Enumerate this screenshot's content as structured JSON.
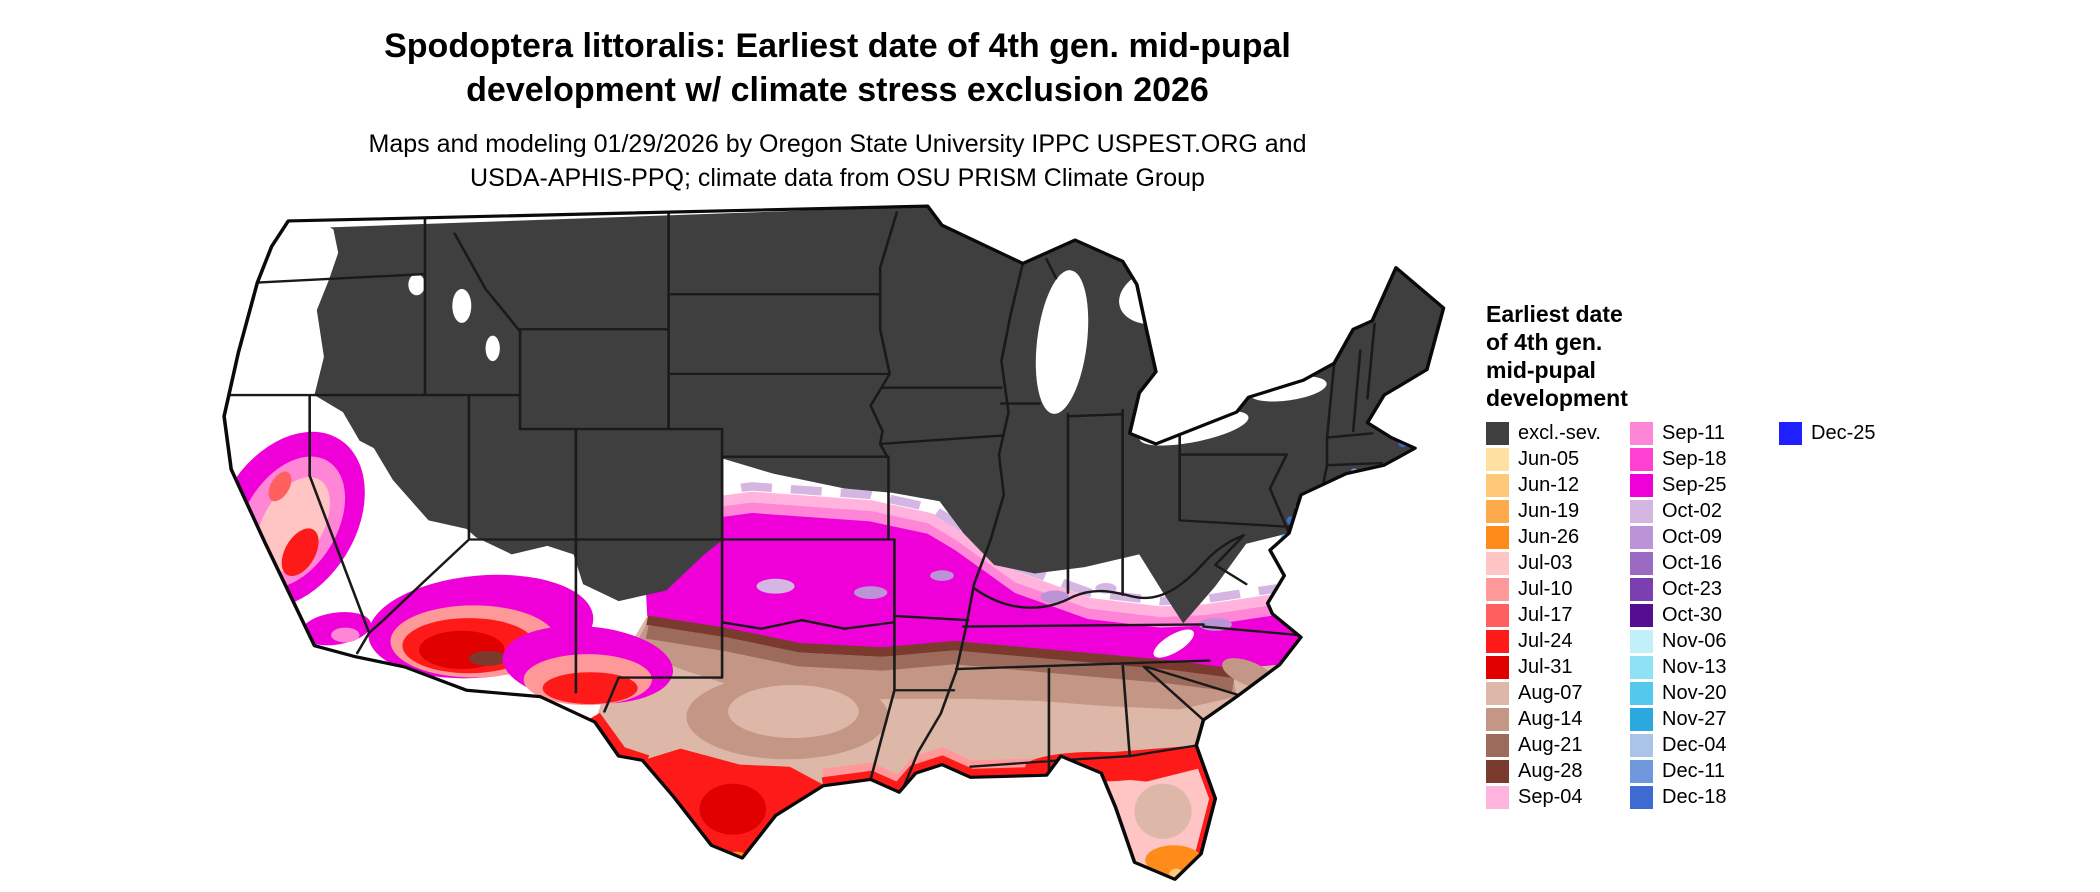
{
  "header": {
    "title_lines": [
      "Spodoptera littoralis: Earliest date of 4th gen. mid-pupal",
      "development w/ climate stress exclusion 2026"
    ],
    "subtitle_lines": [
      "Maps and modeling 01/29/2026 by Oregon State University IPPC USPEST.ORG and",
      "USDA-APHIS-PPQ; climate data from OSU PRISM Climate Group"
    ]
  },
  "legend": {
    "title_lines": [
      "Earliest date",
      "of 4th gen.",
      "mid-pupal",
      "development"
    ],
    "column_sizes": [
      15,
      15,
      1
    ]
  },
  "palette": {
    "white": "#FFFFFF",
    "excl": "#3F3F3F",
    "jun05": "#FFE0A3",
    "jun12": "#FFC878",
    "jun19": "#FFA94D",
    "jun26": "#FF8C1A",
    "jul03": "#FFC4C4",
    "jul10": "#FF9999",
    "jul17": "#FF5F5F",
    "jul24": "#FF1A1A",
    "jul31": "#E00000",
    "aug07": "#DDB8A8",
    "aug14": "#C49686",
    "aug21": "#9C6B5C",
    "aug28": "#7A3B2E",
    "sep04": "#FFB3DD",
    "sep11": "#FF85D6",
    "sep18": "#FF40D0",
    "sep25": "#F000D8",
    "oct02": "#D5B6E3",
    "oct09": "#BB93D6",
    "oct16": "#9B6BC4",
    "oct23": "#7C3FB0",
    "oct30": "#560D91",
    "nov06": "#C2F0FA",
    "nov13": "#8FE1F5",
    "nov20": "#55C9ED",
    "nov27": "#2BA8DE",
    "dec04": "#A9C4E6",
    "dec11": "#6F97DB",
    "dec18": "#3D6BD1",
    "dec25": "#1F1FFF"
  },
  "chart_data": {
    "type": "choropleth_map",
    "region": "Contiguous United States",
    "title": "Spodoptera littoralis: Earliest date of 4th gen. mid-pupal development w/ climate stress exclusion 2026",
    "legend_title": "Earliest date of 4th gen. mid-pupal development",
    "classes": [
      {
        "label": "excl.-sev.",
        "key": "excl"
      },
      {
        "label": "Jun-05",
        "key": "jun05"
      },
      {
        "label": "Jun-12",
        "key": "jun12"
      },
      {
        "label": "Jun-19",
        "key": "jun19"
      },
      {
        "label": "Jun-26",
        "key": "jun26"
      },
      {
        "label": "Jul-03",
        "key": "jul03"
      },
      {
        "label": "Jul-10",
        "key": "jul10"
      },
      {
        "label": "Jul-17",
        "key": "jul17"
      },
      {
        "label": "Jul-24",
        "key": "jul24"
      },
      {
        "label": "Jul-31",
        "key": "jul31"
      },
      {
        "label": "Aug-07",
        "key": "aug07"
      },
      {
        "label": "Aug-14",
        "key": "aug14"
      },
      {
        "label": "Aug-21",
        "key": "aug21"
      },
      {
        "label": "Aug-28",
        "key": "aug28"
      },
      {
        "label": "Sep-04",
        "key": "sep04"
      },
      {
        "label": "Sep-11",
        "key": "sep11"
      },
      {
        "label": "Sep-18",
        "key": "sep18"
      },
      {
        "label": "Sep-25",
        "key": "sep25"
      },
      {
        "label": "Oct-02",
        "key": "oct02"
      },
      {
        "label": "Oct-09",
        "key": "oct09"
      },
      {
        "label": "Oct-16",
        "key": "oct16"
      },
      {
        "label": "Oct-23",
        "key": "oct23"
      },
      {
        "label": "Oct-30",
        "key": "oct30"
      },
      {
        "label": "Nov-06",
        "key": "nov06"
      },
      {
        "label": "Nov-13",
        "key": "nov13"
      },
      {
        "label": "Nov-20",
        "key": "nov20"
      },
      {
        "label": "Nov-27",
        "key": "nov27"
      },
      {
        "label": "Dec-04",
        "key": "dec04"
      },
      {
        "label": "Dec-11",
        "key": "dec11"
      },
      {
        "label": "Dec-18",
        "key": "dec18"
      },
      {
        "label": "Dec-25",
        "key": "dec25"
      }
    ]
  }
}
